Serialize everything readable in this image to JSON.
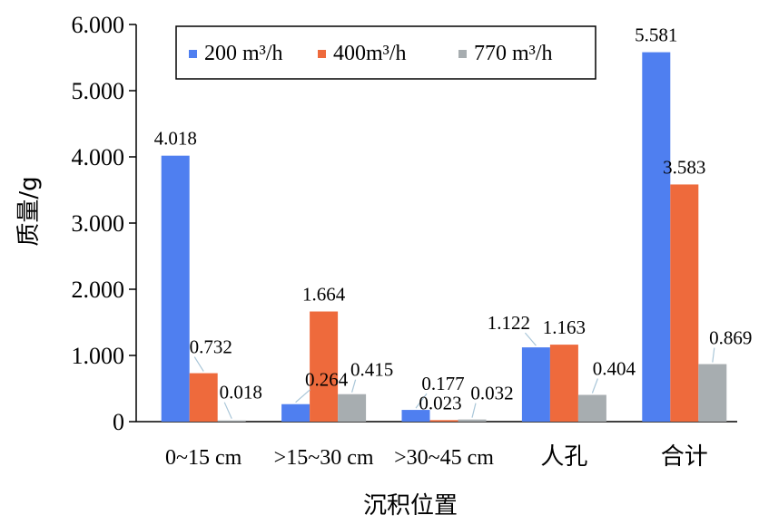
{
  "chart_data": {
    "type": "bar",
    "ylabel": "质量/g",
    "xlabel": "沉积位置",
    "categories": [
      "0~15 cm",
      ">15~30 cm",
      ">30~45 cm",
      "人孔",
      "合计"
    ],
    "y_ticks": [
      "0",
      "1.000",
      "2.000",
      "3.000",
      "4.000",
      "5.000",
      "6.000"
    ],
    "ylim": [
      0,
      6
    ],
    "grid": false,
    "legend_position": "top",
    "series": [
      {
        "name": "200 m³/h",
        "color": "#4f7ff0",
        "values": [
          4.018,
          0.264,
          0.177,
          1.122,
          5.581
        ],
        "labels": [
          "4.018",
          "0.264",
          "0.177",
          "1.122",
          "5.581"
        ]
      },
      {
        "name": "400m³/h",
        "color": "#ee6a3c",
        "values": [
          0.732,
          1.664,
          0.023,
          1.163,
          3.583
        ],
        "labels": [
          "0.732",
          "1.664",
          "0.023",
          "1.163",
          "3.583"
        ]
      },
      {
        "name": "770 m³/h",
        "color": "#a7adb0",
        "values": [
          0.018,
          0.415,
          0.032,
          0.404,
          0.869
        ],
        "labels": [
          "0.018",
          "0.415",
          "0.032",
          "0.404",
          "0.869"
        ]
      }
    ]
  }
}
